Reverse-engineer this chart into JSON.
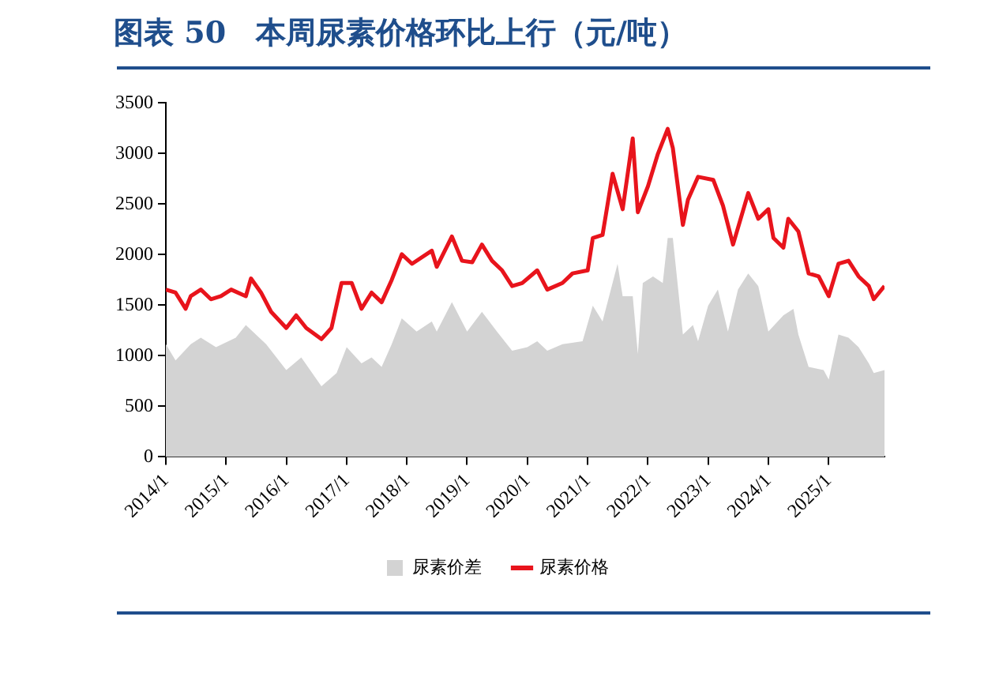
{
  "chart_data": {
    "type": "line",
    "title": "图表 50　本周尿素价格环比上行（元/吨）",
    "xlim": [
      "2014-01",
      "2025-12-05"
    ],
    "xticks": [
      {
        "value": "2014-01",
        "label": "2014/1"
      },
      {
        "value": "2015-01",
        "label": "2015/1"
      },
      {
        "value": "2016-01",
        "label": "2016/1"
      },
      {
        "value": "2017-01",
        "label": "2017/1"
      },
      {
        "value": "2018-01",
        "label": "2018/1"
      },
      {
        "value": "2019-01",
        "label": "2019/1"
      },
      {
        "value": "2020-01",
        "label": "2020/1"
      },
      {
        "value": "2021-01",
        "label": "2021/1"
      },
      {
        "value": "2022-01",
        "label": "2022/1"
      },
      {
        "value": "2023-01",
        "label": "2023/1"
      },
      {
        "value": "2024-01",
        "label": "2024/1"
      },
      {
        "value": "2025-01",
        "label": "2025/1"
      }
    ],
    "ylim": [
      0,
      3500
    ],
    "yticks": [
      0,
      500,
      1000,
      1500,
      2000,
      2500,
      3000,
      3500
    ],
    "grid": false,
    "legend": "bottom",
    "series": [
      {
        "name": "尿素价差",
        "type": "area",
        "color": "#d3d3d3",
        "x": [
          "2014-01",
          "2014-03",
          "2014-06",
          "2014-08",
          "2014-11",
          "2015-03",
          "2015-05",
          "2015-09",
          "2016-01",
          "2016-04",
          "2016-08",
          "2016-11",
          "2017-01",
          "2017-04",
          "2017-06",
          "2017-08",
          "2017-10",
          "2017-12",
          "2018-03",
          "2018-06",
          "2018-07",
          "2018-10",
          "2019-01",
          "2019-04",
          "2019-07",
          "2019-10",
          "2020-01",
          "2020-03",
          "2020-05",
          "2020-08",
          "2020-12",
          "2021-02",
          "2021-04",
          "2021-07",
          "2021-08",
          "2021-10",
          "2021-11",
          "2021-12",
          "2022-02",
          "2022-04",
          "2022-05",
          "2022-06",
          "2022-08",
          "2022-10",
          "2022-11",
          "2023-01",
          "2023-03",
          "2023-05",
          "2023-07",
          "2023-09",
          "2023-11",
          "2024-01",
          "2024-04",
          "2024-06",
          "2024-07",
          "2024-09",
          "2024-12",
          "2025-01",
          "2025-03",
          "2025-05",
          "2025-07",
          "2025-09",
          "2025-10",
          "2025-12-05"
        ],
        "values": [
          1115,
          955,
          1115,
          1180,
          1085,
          1180,
          1305,
          1115,
          860,
          985,
          700,
          830,
          1085,
          925,
          985,
          890,
          1115,
          1370,
          1240,
          1340,
          1240,
          1530,
          1240,
          1435,
          1240,
          1050,
          1085,
          1145,
          1050,
          1115,
          1145,
          1495,
          1340,
          1910,
          1590,
          1590,
          1020,
          1720,
          1785,
          1720,
          2165,
          2165,
          1210,
          1305,
          1145,
          1495,
          1655,
          1240,
          1655,
          1815,
          1690,
          1240,
          1400,
          1465,
          1210,
          890,
          860,
          765,
          1210,
          1180,
          1085,
          925,
          830,
          860
        ]
      },
      {
        "name": "尿素价格",
        "color": "#e8141c",
        "x": [
          "2014-01",
          "2014-03",
          "2014-05",
          "2014-06",
          "2014-08",
          "2014-10",
          "2014-12",
          "2015-02",
          "2015-05",
          "2015-06",
          "2015-08",
          "2015-10",
          "2016-01",
          "2016-03",
          "2016-05",
          "2016-08",
          "2016-10",
          "2016-12",
          "2017-02",
          "2017-04",
          "2017-06",
          "2017-08",
          "2017-10",
          "2017-12",
          "2018-02",
          "2018-06",
          "2018-07",
          "2018-10",
          "2018-12",
          "2019-02",
          "2019-04",
          "2019-06",
          "2019-08",
          "2019-10",
          "2019-12",
          "2020-03",
          "2020-05",
          "2020-08",
          "2020-10",
          "2021-01",
          "2021-02",
          "2021-04",
          "2021-06",
          "2021-08",
          "2021-10",
          "2021-11",
          "2022-01",
          "2022-03",
          "2022-05",
          "2022-06",
          "2022-08",
          "2022-09",
          "2022-11",
          "2023-02",
          "2023-04",
          "2023-06",
          "2023-09",
          "2023-11",
          "2024-01",
          "2024-02",
          "2024-04",
          "2024-05",
          "2024-07",
          "2024-09",
          "2024-11",
          "2025-01",
          "2025-03",
          "2025-05",
          "2025-07",
          "2025-09",
          "2025-10",
          "2025-12-05"
        ],
        "values": [
          1655,
          1625,
          1465,
          1590,
          1655,
          1560,
          1590,
          1655,
          1590,
          1765,
          1625,
          1435,
          1275,
          1400,
          1275,
          1165,
          1275,
          1720,
          1720,
          1465,
          1625,
          1530,
          1750,
          2005,
          1910,
          2040,
          1880,
          2180,
          1940,
          1925,
          2100,
          1940,
          1845,
          1690,
          1720,
          1845,
          1655,
          1720,
          1815,
          1845,
          2165,
          2195,
          2800,
          2450,
          3150,
          2420,
          2675,
          2990,
          3245,
          3055,
          2295,
          2545,
          2770,
          2740,
          2485,
          2100,
          2610,
          2355,
          2450,
          2165,
          2070,
          2355,
          2230,
          1815,
          1785,
          1590,
          1910,
          1940,
          1785,
          1690,
          1560,
          1690
        ]
      }
    ]
  }
}
